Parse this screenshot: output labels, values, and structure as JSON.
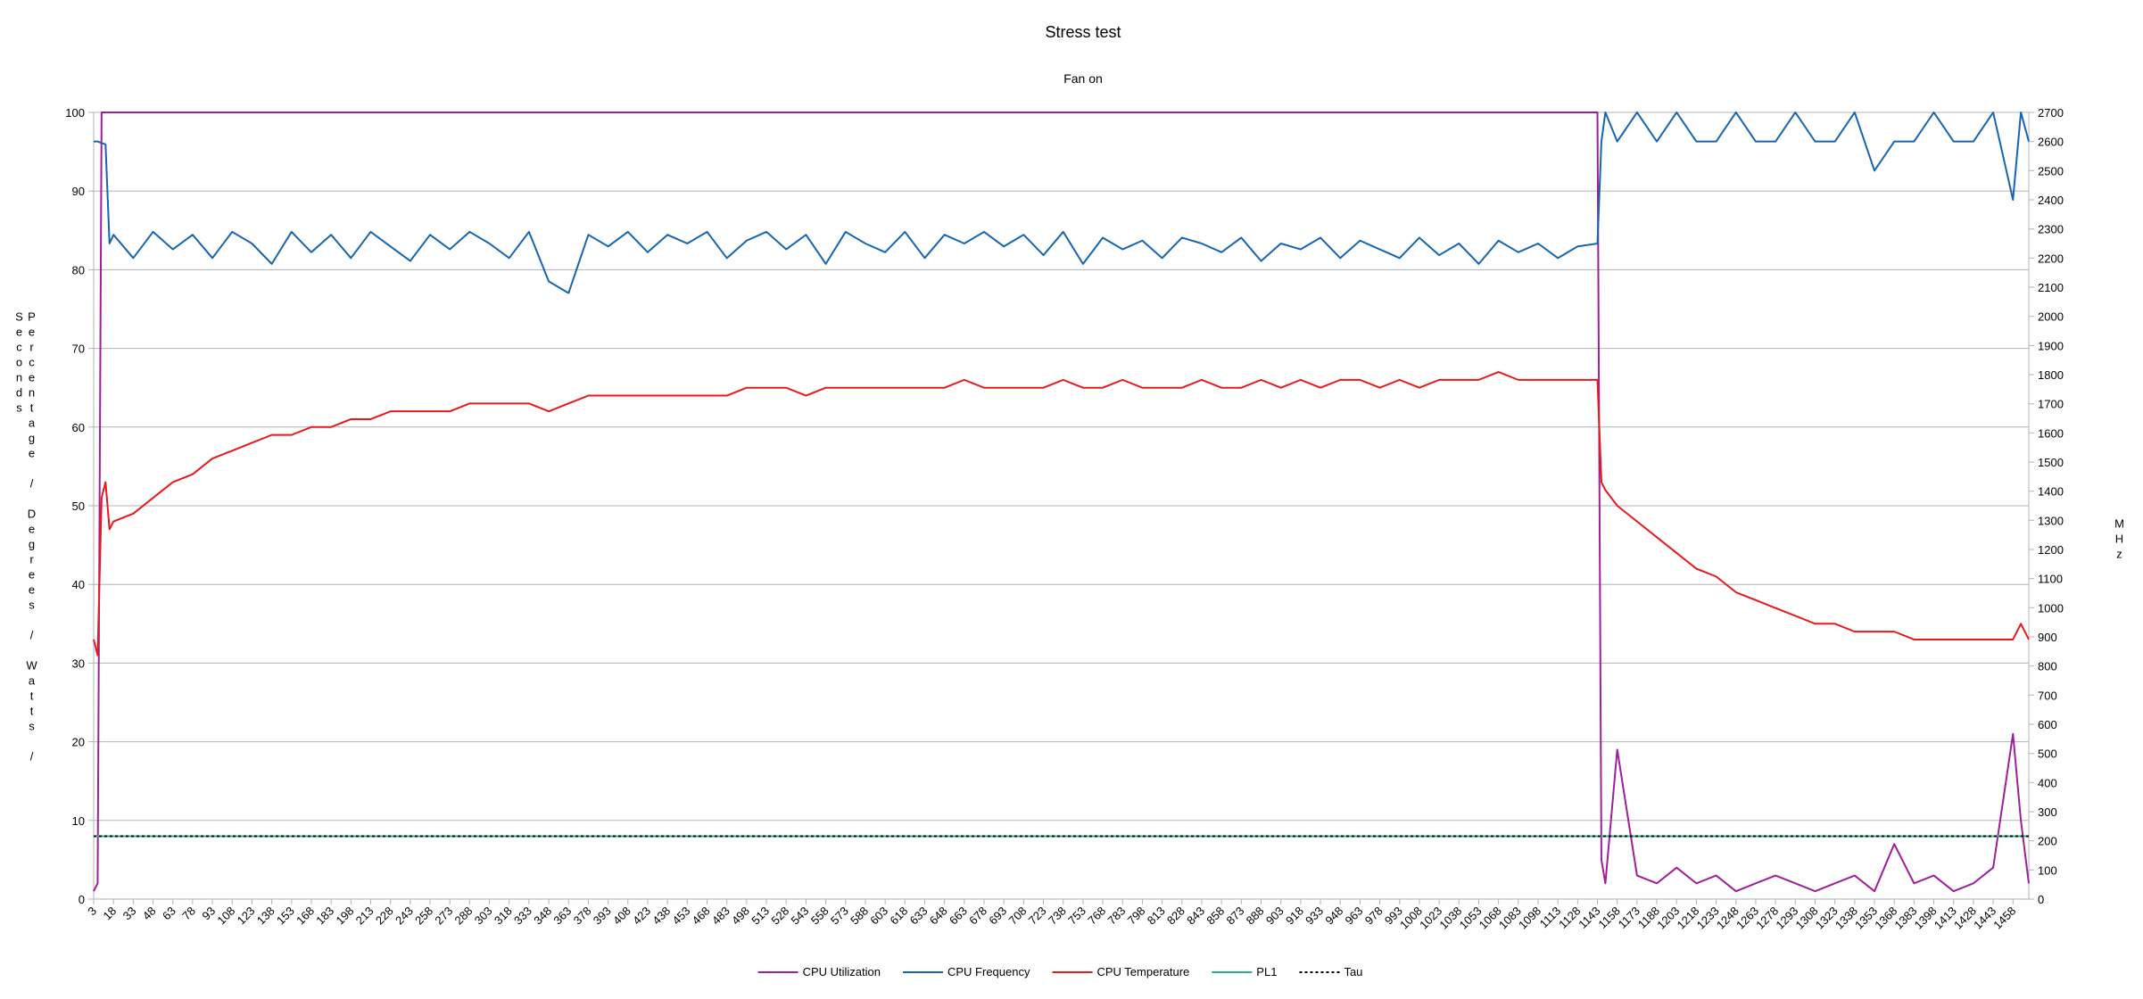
{
  "chart_data": {
    "type": "line",
    "title": "Stress test",
    "subtitle": "Fan on",
    "ylabel": "Percentage / Degrees / Watts / Seconds",
    "y2label": "MHz",
    "x": [
      3,
      6,
      9,
      12,
      15,
      18,
      33,
      48,
      63,
      78,
      93,
      108,
      123,
      138,
      153,
      168,
      183,
      198,
      213,
      228,
      243,
      258,
      273,
      288,
      303,
      318,
      333,
      348,
      363,
      378,
      393,
      408,
      423,
      438,
      453,
      468,
      483,
      498,
      513,
      528,
      543,
      558,
      573,
      588,
      603,
      618,
      633,
      648,
      663,
      678,
      693,
      708,
      723,
      738,
      753,
      768,
      783,
      798,
      813,
      828,
      843,
      858,
      873,
      888,
      903,
      918,
      933,
      948,
      963,
      978,
      993,
      1008,
      1023,
      1038,
      1053,
      1068,
      1083,
      1098,
      1113,
      1128,
      1143,
      1146,
      1149,
      1158,
      1173,
      1188,
      1203,
      1218,
      1233,
      1248,
      1263,
      1278,
      1293,
      1308,
      1323,
      1338,
      1353,
      1368,
      1383,
      1398,
      1413,
      1428,
      1443,
      1458,
      1464,
      1470
    ],
    "xlim": [
      3,
      1470
    ],
    "xticks": [
      3,
      18,
      33,
      48,
      63,
      78,
      93,
      108,
      123,
      138,
      153,
      168,
      183,
      198,
      213,
      228,
      243,
      258,
      273,
      288,
      303,
      318,
      333,
      348,
      363,
      378,
      393,
      408,
      423,
      438,
      453,
      468,
      483,
      498,
      513,
      528,
      543,
      558,
      573,
      588,
      603,
      618,
      633,
      648,
      663,
      678,
      693,
      708,
      723,
      738,
      753,
      768,
      783,
      798,
      813,
      828,
      843,
      858,
      873,
      888,
      903,
      918,
      933,
      948,
      963,
      978,
      993,
      1008,
      1023,
      1038,
      1053,
      1068,
      1083,
      1098,
      1113,
      1128,
      1143,
      1158,
      1173,
      1188,
      1203,
      1218,
      1233,
      1248,
      1263,
      1278,
      1293,
      1308,
      1323,
      1338,
      1353,
      1368,
      1383,
      1398,
      1413,
      1428,
      1443,
      1458
    ],
    "ylim": [
      0,
      100
    ],
    "yticks": [
      0,
      10,
      20,
      30,
      40,
      50,
      60,
      70,
      80,
      90,
      100
    ],
    "y2lim": [
      0,
      2700
    ],
    "y2ticks": [
      0,
      100,
      200,
      300,
      400,
      500,
      600,
      700,
      800,
      900,
      1000,
      1100,
      1200,
      1300,
      1400,
      1500,
      1600,
      1700,
      1800,
      1900,
      2000,
      2100,
      2200,
      2300,
      2400,
      2500,
      2600,
      2700
    ],
    "grid": true,
    "legend": "bottom",
    "series": [
      {
        "name": "CPU Utilization",
        "color": "#a01d9b",
        "values": [
          1,
          2,
          100,
          100,
          100,
          100,
          100,
          100,
          100,
          100,
          100,
          100,
          100,
          100,
          100,
          100,
          100,
          100,
          100,
          100,
          100,
          100,
          100,
          100,
          100,
          100,
          100,
          100,
          100,
          100,
          100,
          100,
          100,
          100,
          100,
          100,
          100,
          100,
          100,
          100,
          100,
          100,
          100,
          100,
          100,
          100,
          100,
          100,
          100,
          100,
          100,
          100,
          100,
          100,
          100,
          100,
          100,
          100,
          100,
          100,
          100,
          100,
          100,
          100,
          100,
          100,
          100,
          100,
          100,
          100,
          100,
          100,
          100,
          100,
          100,
          100,
          100,
          100,
          100,
          100,
          100,
          5,
          2,
          19,
          3,
          2,
          4,
          2,
          3,
          1,
          2,
          3,
          2,
          1,
          2,
          3,
          1,
          7,
          2,
          3,
          1,
          2,
          4,
          21,
          10,
          2
        ]
      },
      {
        "name": "CPU Frequency",
        "color": "#1565b0",
        "axis": "y2",
        "values": [
          2600,
          2600,
          2595,
          2590,
          2250,
          2280,
          2200,
          2290,
          2230,
          2280,
          2200,
          2290,
          2250,
          2180,
          2290,
          2220,
          2280,
          2200,
          2290,
          2240,
          2190,
          2280,
          2230,
          2290,
          2250,
          2200,
          2290,
          2120,
          2080,
          2280,
          2240,
          2290,
          2220,
          2280,
          2250,
          2290,
          2200,
          2260,
          2290,
          2230,
          2280,
          2180,
          2290,
          2250,
          2220,
          2290,
          2200,
          2280,
          2250,
          2290,
          2240,
          2280,
          2210,
          2290,
          2180,
          2270,
          2230,
          2260,
          2200,
          2270,
          2250,
          2220,
          2270,
          2190,
          2250,
          2230,
          2270,
          2200,
          2260,
          2230,
          2200,
          2270,
          2210,
          2250,
          2180,
          2260,
          2220,
          2250,
          2200,
          2240,
          2250,
          2600,
          2700,
          2600,
          2700,
          2600,
          2700,
          2600,
          2600,
          2700,
          2600,
          2600,
          2700,
          2600,
          2600,
          2700,
          2500,
          2600,
          2600,
          2700,
          2600,
          2600,
          2700,
          2400,
          2700,
          2600
        ]
      },
      {
        "name": "CPU Temperature",
        "color": "#e8191c",
        "values": [
          33,
          31,
          51,
          53,
          47,
          48,
          49,
          51,
          53,
          54,
          56,
          57,
          58,
          59,
          59,
          60,
          60,
          61,
          61,
          62,
          62,
          62,
          62,
          63,
          63,
          63,
          63,
          62,
          63,
          64,
          64,
          64,
          64,
          64,
          64,
          64,
          64,
          65,
          65,
          65,
          64,
          65,
          65,
          65,
          65,
          65,
          65,
          65,
          66,
          65,
          65,
          65,
          65,
          66,
          65,
          65,
          66,
          65,
          65,
          65,
          66,
          65,
          65,
          66,
          65,
          66,
          65,
          66,
          66,
          65,
          66,
          65,
          66,
          66,
          66,
          67,
          66,
          66,
          66,
          66,
          66,
          53,
          52,
          50,
          48,
          46,
          44,
          42,
          41,
          39,
          38,
          37,
          36,
          35,
          35,
          34,
          34,
          34,
          33,
          33,
          33,
          33,
          33,
          33,
          35,
          33
        ]
      },
      {
        "name": "PL1",
        "color": "#25b08a",
        "values": [
          8,
          8,
          8,
          8,
          8,
          8,
          8,
          8,
          8,
          8,
          8,
          8,
          8,
          8,
          8,
          8,
          8,
          8,
          8,
          8,
          8,
          8,
          8,
          8,
          8,
          8,
          8,
          8,
          8,
          8,
          8,
          8,
          8,
          8,
          8,
          8,
          8,
          8,
          8,
          8,
          8,
          8,
          8,
          8,
          8,
          8,
          8,
          8,
          8,
          8,
          8,
          8,
          8,
          8,
          8,
          8,
          8,
          8,
          8,
          8,
          8,
          8,
          8,
          8,
          8,
          8,
          8,
          8,
          8,
          8,
          8,
          8,
          8,
          8,
          8,
          8,
          8,
          8,
          8,
          8,
          8,
          8,
          8,
          8,
          8,
          8,
          8,
          8,
          8,
          8,
          8,
          8,
          8,
          8,
          8,
          8,
          8,
          8,
          8,
          8,
          8,
          8,
          8,
          8,
          8,
          8
        ]
      },
      {
        "name": "Tau",
        "color": "#000000",
        "dashed": true,
        "values": [
          8,
          8,
          8,
          8,
          8,
          8,
          8,
          8,
          8,
          8,
          8,
          8,
          8,
          8,
          8,
          8,
          8,
          8,
          8,
          8,
          8,
          8,
          8,
          8,
          8,
          8,
          8,
          8,
          8,
          8,
          8,
          8,
          8,
          8,
          8,
          8,
          8,
          8,
          8,
          8,
          8,
          8,
          8,
          8,
          8,
          8,
          8,
          8,
          8,
          8,
          8,
          8,
          8,
          8,
          8,
          8,
          8,
          8,
          8,
          8,
          8,
          8,
          8,
          8,
          8,
          8,
          8,
          8,
          8,
          8,
          8,
          8,
          8,
          8,
          8,
          8,
          8,
          8,
          8,
          8,
          8,
          8,
          8,
          8,
          8,
          8,
          8,
          8,
          8,
          8,
          8,
          8,
          8,
          8,
          8,
          8,
          8,
          8,
          8,
          8,
          8,
          8,
          8,
          8,
          8,
          8
        ]
      }
    ]
  }
}
